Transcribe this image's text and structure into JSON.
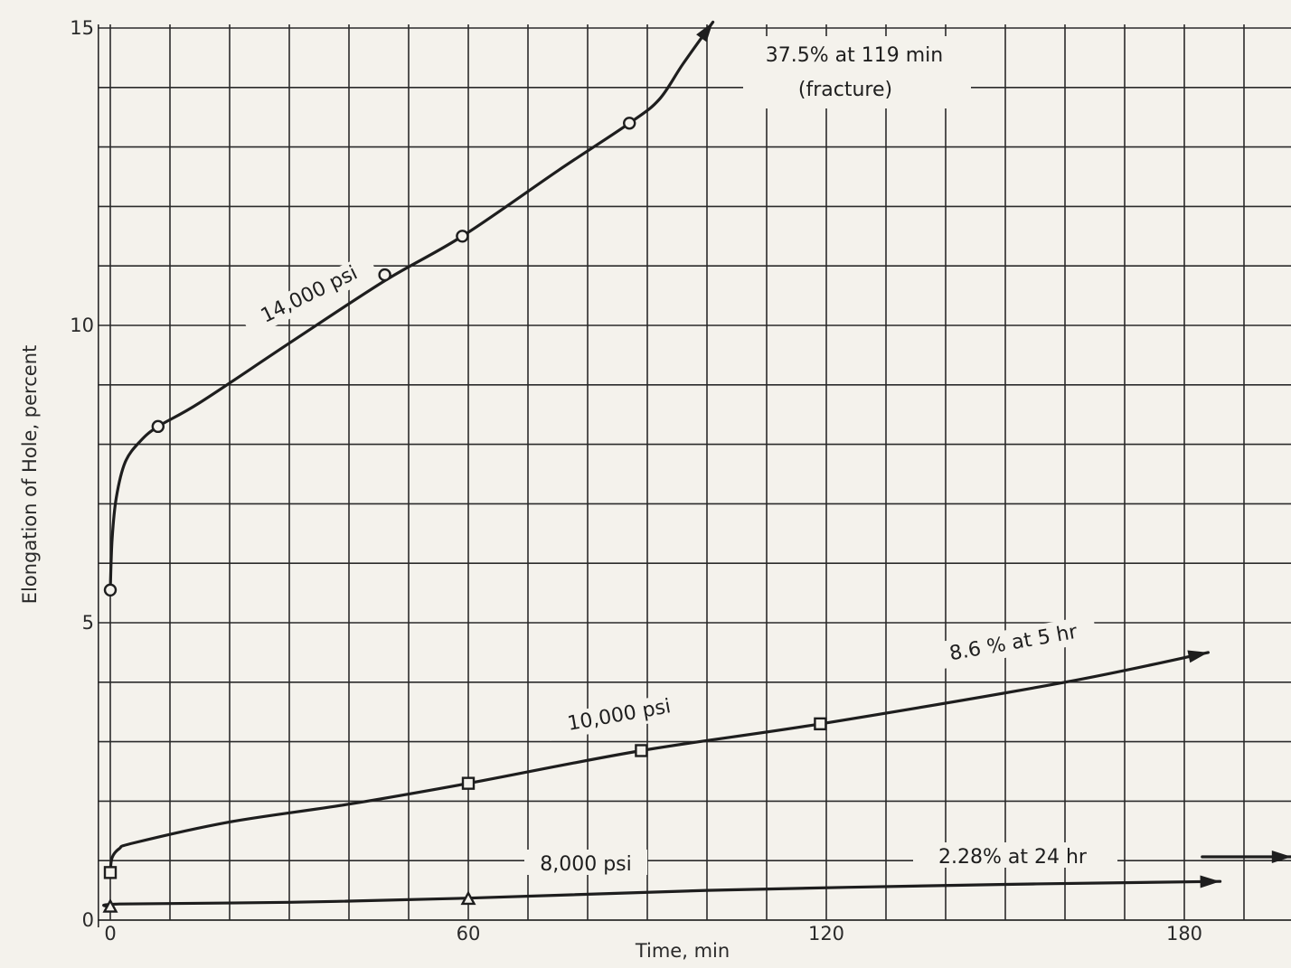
{
  "chart_data": {
    "type": "line",
    "xlabel": "Time, min",
    "ylabel": "Elongation of Hole, percent",
    "xlim": [
      -2,
      198
    ],
    "ylim": [
      0,
      15
    ],
    "x_ticks": [
      {
        "value": 0,
        "label": "0"
      },
      {
        "value": 60,
        "label": "60"
      },
      {
        "value": 120,
        "label": "120"
      },
      {
        "value": 180,
        "label": "180"
      }
    ],
    "y_ticks": [
      {
        "value": 0,
        "label": "0"
      },
      {
        "value": 5,
        "label": "5"
      },
      {
        "value": 10,
        "label": "10"
      },
      {
        "value": 15,
        "label": "15"
      }
    ],
    "grid": true,
    "series": [
      {
        "name": "14,000 psi",
        "marker": "circle",
        "x": [
          0,
          8,
          46,
          59,
          87
        ],
        "y": [
          5.55,
          8.3,
          10.85,
          11.5,
          13.4
        ],
        "curve": [
          [
            0,
            5.55
          ],
          [
            0.3,
            6.4
          ],
          [
            1,
            7.1
          ],
          [
            2.5,
            7.7
          ],
          [
            5,
            8.05
          ],
          [
            8,
            8.3
          ],
          [
            15,
            8.7
          ],
          [
            30,
            9.7
          ],
          [
            46,
            10.75
          ],
          [
            59,
            11.5
          ],
          [
            75,
            12.6
          ],
          [
            87,
            13.4
          ],
          [
            92,
            13.8
          ],
          [
            96,
            14.4
          ],
          [
            101,
            15.1
          ]
        ],
        "annotation": "37.5% at 119 min",
        "annotation_sub": "(fracture)"
      },
      {
        "name": "10,000 psi",
        "marker": "square",
        "x": [
          0,
          60,
          89,
          119
        ],
        "y": [
          0.8,
          2.3,
          2.85,
          3.3
        ],
        "curve": [
          [
            0,
            0.8
          ],
          [
            0.3,
            1.05
          ],
          [
            1.5,
            1.2
          ],
          [
            4,
            1.3
          ],
          [
            20,
            1.65
          ],
          [
            40,
            1.95
          ],
          [
            60,
            2.3
          ],
          [
            89,
            2.85
          ],
          [
            119,
            3.3
          ],
          [
            160,
            4.0
          ],
          [
            184,
            4.5
          ]
        ],
        "annotation": "8.6 % at 5 hr"
      },
      {
        "name": "8,000 psi",
        "marker": "triangle",
        "x": [
          0,
          60
        ],
        "y": [
          0.22,
          0.35
        ],
        "curve": [
          [
            0,
            0.22
          ],
          [
            1.5,
            0.27
          ],
          [
            30,
            0.3
          ],
          [
            60,
            0.37
          ],
          [
            100,
            0.5
          ],
          [
            150,
            0.6
          ],
          [
            186,
            0.65
          ]
        ],
        "annotation": "2.28% at 24 hr"
      }
    ]
  }
}
